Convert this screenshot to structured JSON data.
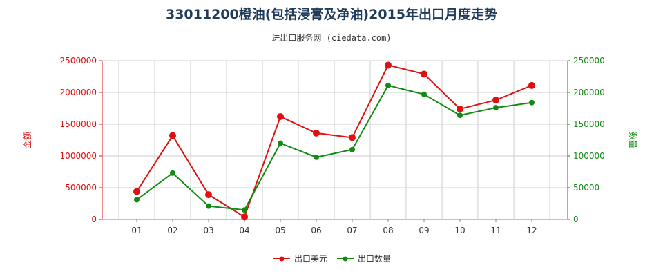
{
  "header": {
    "title": "33011200橙油(包括浸膏及净油)2015年出口月度走势",
    "subtitle": "进出口服务网 (ciedata.com)"
  },
  "colors": {
    "left_axis": "#e01010",
    "right_axis": "#138a13",
    "grid": "#cccccc"
  },
  "chart_data": {
    "type": "line",
    "categories": [
      "01",
      "02",
      "03",
      "04",
      "05",
      "06",
      "07",
      "08",
      "09",
      "10",
      "11",
      "12"
    ],
    "y_left": {
      "label": "金额",
      "ticks": [
        "0",
        "500000",
        "1000000",
        "1500000",
        "2000000",
        "2500000"
      ],
      "ylim": [
        0,
        2500000
      ]
    },
    "y_right": {
      "label": "数量",
      "ticks": [
        "0",
        "50000",
        "100000",
        "150000",
        "200000",
        "250000"
      ],
      "ylim": [
        0,
        250000
      ]
    },
    "series": [
      {
        "name": "出口美元",
        "axis": "left",
        "color": "#e01010",
        "values": [
          440000,
          1320000,
          390000,
          40000,
          1620000,
          1360000,
          1290000,
          2430000,
          2290000,
          1740000,
          1880000,
          2110000
        ]
      },
      {
        "name": "出口数量",
        "axis": "right",
        "color": "#138a13",
        "values": [
          31000,
          73000,
          21000,
          15000,
          120000,
          98000,
          110000,
          211000,
          197000,
          164000,
          176000,
          184000
        ]
      }
    ],
    "grid": true,
    "legend_position": "bottom"
  }
}
